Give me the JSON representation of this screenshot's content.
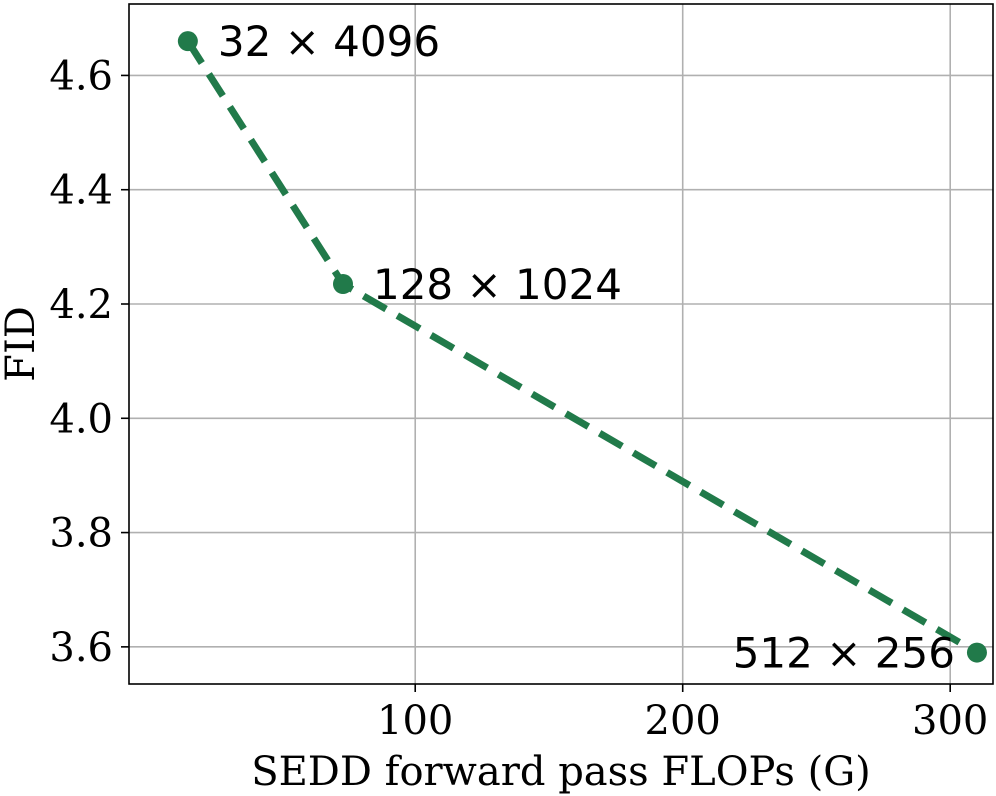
{
  "chart_data": {
    "type": "line",
    "xlabel": "SEDD forward pass FLOPs (G)",
    "ylabel": "FID",
    "xlim": [
      -7,
      316
    ],
    "ylim": [
      3.535,
      4.725
    ],
    "x_ticks": [
      100,
      200,
      300
    ],
    "y_ticks": [
      3.6,
      3.8,
      4.0,
      4.2,
      4.4,
      4.6
    ],
    "y_tick_labels": [
      "3.6",
      "3.8",
      "4.0",
      "4.2",
      "4.4",
      "4.6"
    ],
    "grid": true,
    "legend": "none",
    "series": [
      {
        "color": "#217a4a",
        "line_style": "dashed",
        "marker": "circle",
        "points": [
          {
            "x": 15,
            "y": 4.66,
            "label": "32 × 4096"
          },
          {
            "x": 73,
            "y": 4.235,
            "label": "128 × 1024"
          },
          {
            "x": 310,
            "y": 3.59,
            "label": "512 × 256"
          }
        ]
      }
    ]
  }
}
